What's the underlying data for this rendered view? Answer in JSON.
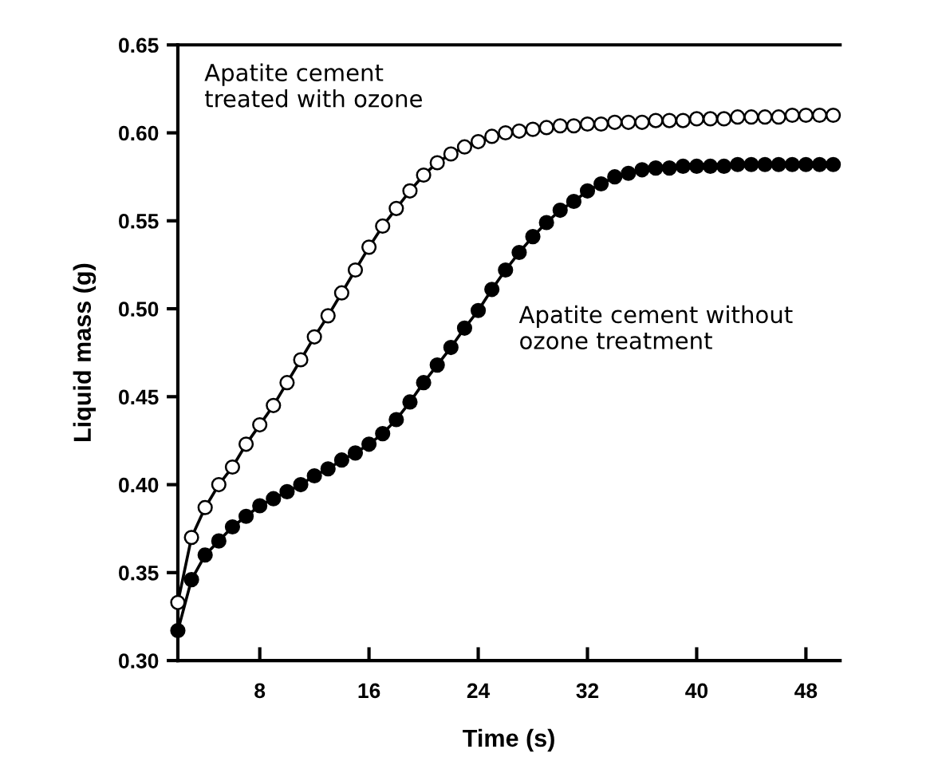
{
  "chart_data": {
    "type": "line",
    "xlabel": "Time (s)",
    "ylabel": "Liquid mass (g)",
    "x": [
      2,
      3,
      4,
      5,
      6,
      7,
      8,
      9,
      10,
      11,
      12,
      13,
      14,
      15,
      16,
      17,
      18,
      19,
      20,
      21,
      22,
      23,
      24,
      25,
      26,
      27,
      28,
      29,
      30,
      31,
      32,
      33,
      34,
      35,
      36,
      37,
      38,
      39,
      40,
      41,
      42,
      43,
      44,
      45,
      46,
      47,
      48,
      49,
      50
    ],
    "series": [
      {
        "name": "Apatite cement\ntreated with ozone",
        "color": "#ffffff",
        "marker": "circle",
        "values": [
          0.333,
          0.37,
          0.387,
          0.4,
          0.41,
          0.423,
          0.434,
          0.445,
          0.458,
          0.471,
          0.484,
          0.496,
          0.509,
          0.522,
          0.535,
          0.547,
          0.557,
          0.567,
          0.576,
          0.583,
          0.588,
          0.592,
          0.595,
          0.598,
          0.6,
          0.601,
          0.602,
          0.603,
          0.604,
          0.604,
          0.605,
          0.605,
          0.606,
          0.606,
          0.606,
          0.607,
          0.607,
          0.607,
          0.608,
          0.608,
          0.608,
          0.609,
          0.609,
          0.609,
          0.609,
          0.61,
          0.61,
          0.61,
          0.61
        ]
      },
      {
        "name": "Apatite cement without\nozone treatment",
        "color": "#000000",
        "marker": "circle",
        "values": [
          0.317,
          0.346,
          0.36,
          0.368,
          0.376,
          0.382,
          0.388,
          0.392,
          0.396,
          0.4,
          0.405,
          0.409,
          0.414,
          0.418,
          0.423,
          0.429,
          0.437,
          0.447,
          0.458,
          0.468,
          0.478,
          0.489,
          0.499,
          0.511,
          0.522,
          0.532,
          0.541,
          0.549,
          0.556,
          0.561,
          0.567,
          0.571,
          0.575,
          0.577,
          0.579,
          0.58,
          0.58,
          0.581,
          0.581,
          0.581,
          0.581,
          0.582,
          0.582,
          0.582,
          0.582,
          0.582,
          0.582,
          0.582,
          0.582
        ]
      }
    ],
    "xlim": [
      2,
      50.5
    ],
    "xticks": [
      8,
      16,
      24,
      32,
      40,
      48
    ],
    "ylim": [
      0.3,
      0.65
    ],
    "yticks": [
      {
        "value": 0.3,
        "label": "0.30"
      },
      {
        "value": 0.35,
        "label": "0.35"
      },
      {
        "value": 0.4,
        "label": "0.40"
      },
      {
        "value": 0.45,
        "label": "0.45"
      },
      {
        "value": 0.5,
        "label": "0.50"
      },
      {
        "value": 0.55,
        "label": "0.55"
      },
      {
        "value": 0.6,
        "label": "0.60"
      },
      {
        "value": 0.65,
        "label": "0.65"
      }
    ],
    "grid": false,
    "legend": false,
    "line_style": "solid"
  }
}
